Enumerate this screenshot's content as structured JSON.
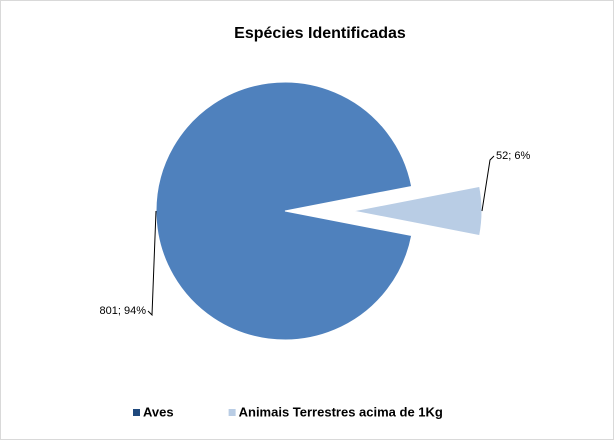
{
  "chart_data": {
    "type": "pie",
    "title": "Espécies Identificadas",
    "categories": [
      "Aves",
      "Animais Terrestres acima de 1Kg"
    ],
    "values": [
      801,
      52
    ],
    "value_labels": [
      "801; 94%",
      "52; 6%"
    ],
    "colors": [
      "#4f81bd",
      "#b9cde5"
    ],
    "exploded": [
      false,
      true
    ],
    "legend": "bottom"
  }
}
